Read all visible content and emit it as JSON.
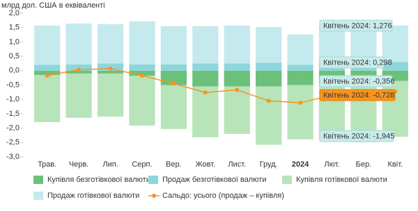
{
  "chart_data": {
    "type": "bar",
    "stacked": true,
    "y_label": "млрд дол. США в еквіваленті",
    "categories": [
      "Трав.",
      "Черв.",
      "Лип.",
      "Серп.",
      "Вер.",
      "Жовт.",
      "Лист.",
      "Груд.",
      "2024",
      "Лют.",
      "Бер.",
      "Квіт."
    ],
    "ylim": [
      -3.0,
      2.0
    ],
    "yticks": [
      {
        "value": 2.0,
        "label": "2,0"
      },
      {
        "value": 1.5,
        "label": "1,5"
      },
      {
        "value": 1.0,
        "label": "1,0"
      },
      {
        "value": 0.5,
        "label": "0,5"
      },
      {
        "value": 0,
        "label": "0,0"
      },
      {
        "value": -0.5,
        "label": "-0,5"
      },
      {
        "value": -1.0,
        "label": "-1,0"
      },
      {
        "value": -1.5,
        "label": "-1,5"
      },
      {
        "value": -2.0,
        "label": "-2,0"
      },
      {
        "value": -2.5,
        "label": "-2,5"
      },
      {
        "value": -3.0,
        "label": "-3,0"
      }
    ],
    "grid": false,
    "series": [
      {
        "name": "Купівля безготівкової валюти",
        "color": "#6cc17a",
        "type": "bar",
        "values": [
          -0.15,
          -0.1,
          -0.1,
          -0.18,
          -0.5,
          -0.55,
          -0.55,
          -0.55,
          -0.5,
          -0.45,
          -0.45,
          -0.356
        ]
      },
      {
        "name": "Продаж безготівкової валюти",
        "color": "#8dd6db",
        "type": "bar",
        "values": [
          0.2,
          0.22,
          0.25,
          0.22,
          0.22,
          0.25,
          0.25,
          0.28,
          0.2,
          0.28,
          0.28,
          0.298
        ]
      },
      {
        "name": "Купівля готівкової валюти",
        "color": "#b8e4ba",
        "type": "bar",
        "values": [
          -1.64,
          -1.54,
          -1.5,
          -1.73,
          -1.53,
          -1.77,
          -1.65,
          -2.03,
          -1.89,
          -1.92,
          -2.04,
          -1.945
        ]
      },
      {
        "name": "Продаж готівкової валюти",
        "color": "#c4eaee",
        "type": "bar",
        "values": [
          1.37,
          1.42,
          1.37,
          1.5,
          1.33,
          1.3,
          1.32,
          1.24,
          1.06,
          1.27,
          1.29,
          1.276
        ]
      },
      {
        "name": "Сальдо: усього (продаж – купівля)",
        "color": "#f7941d",
        "type": "line",
        "values": [
          -0.17,
          0.03,
          0.07,
          -0.17,
          -0.45,
          -0.76,
          -0.67,
          -1.05,
          -1.12,
          -0.85,
          -0.78,
          -0.728
        ]
      }
    ],
    "annotations": [
      "Квітень 2024: 1,276",
      "Квітень 2024: 0,298",
      "Квітень 2024: -0,356",
      "Квітень 2024: -0,728",
      "Квітень 2024: -1,945"
    ]
  }
}
